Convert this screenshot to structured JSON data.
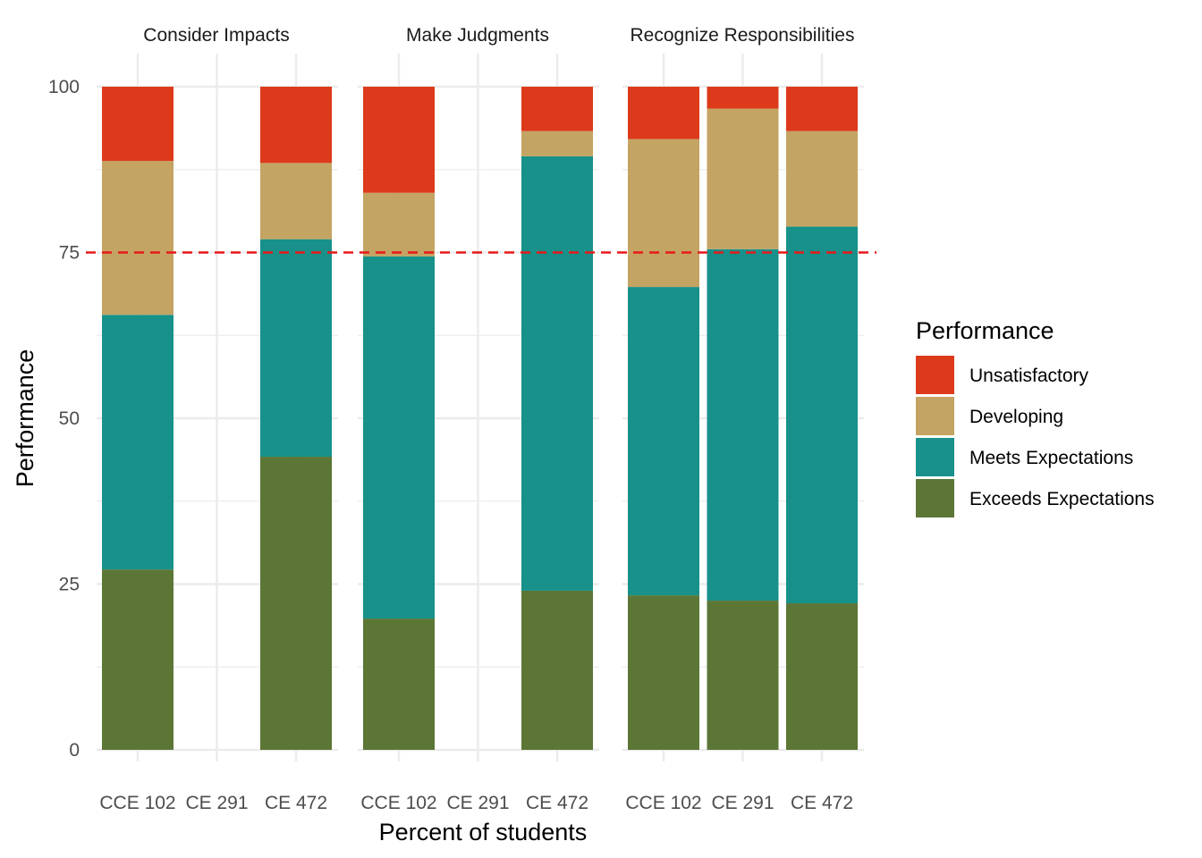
{
  "chart_data": {
    "type": "bar",
    "stacked": true,
    "xlabel": "Percent of students",
    "ylabel": "Performance",
    "ylim": [
      0,
      100
    ],
    "yticks": [
      0,
      25,
      50,
      75,
      100
    ],
    "grid": true,
    "reference_line": {
      "y": 75,
      "style": "dashed",
      "color": "#E8191A"
    },
    "categories": [
      "CCE 102",
      "CE 291",
      "CE 472"
    ],
    "legend": {
      "title": "Performance",
      "position": "right",
      "entries": [
        "Unsatisfactory",
        "Developing",
        "Meets Expectations",
        "Exceeds Expectations"
      ]
    },
    "colors": {
      "Unsatisfactory": "#DD3A1C",
      "Developing": "#C4A463",
      "Meets Expectations": "#17918A",
      "Exceeds Expectations": "#5C7636"
    },
    "stack_order": [
      "Exceeds Expectations",
      "Meets Expectations",
      "Developing",
      "Unsatisfactory"
    ],
    "facets": [
      {
        "title": "Consider Impacts",
        "series": [
          {
            "name": "Exceeds Expectations",
            "values": [
              27.2,
              null,
              44.2
            ]
          },
          {
            "name": "Meets Expectations",
            "values": [
              38.4,
              null,
              32.8
            ]
          },
          {
            "name": "Developing",
            "values": [
              23.2,
              null,
              11.5
            ]
          },
          {
            "name": "Unsatisfactory",
            "values": [
              11.2,
              null,
              11.5
            ]
          }
        ]
      },
      {
        "title": "Make Judgments",
        "series": [
          {
            "name": "Exceeds Expectations",
            "values": [
              19.8,
              null,
              24.0
            ]
          },
          {
            "name": "Meets Expectations",
            "values": [
              54.6,
              null,
              65.5
            ]
          },
          {
            "name": "Developing",
            "values": [
              9.6,
              null,
              3.8
            ]
          },
          {
            "name": "Unsatisfactory",
            "values": [
              16.0,
              null,
              6.7
            ]
          }
        ]
      },
      {
        "title": "Recognize Responsibilities",
        "series": [
          {
            "name": "Exceeds Expectations",
            "values": [
              23.3,
              22.5,
              22.1
            ]
          },
          {
            "name": "Meets Expectations",
            "values": [
              46.5,
              53.0,
              56.8
            ]
          },
          {
            "name": "Developing",
            "values": [
              22.3,
              21.2,
              14.4
            ]
          },
          {
            "name": "Unsatisfactory",
            "values": [
              7.9,
              3.3,
              6.7
            ]
          }
        ]
      }
    ]
  }
}
